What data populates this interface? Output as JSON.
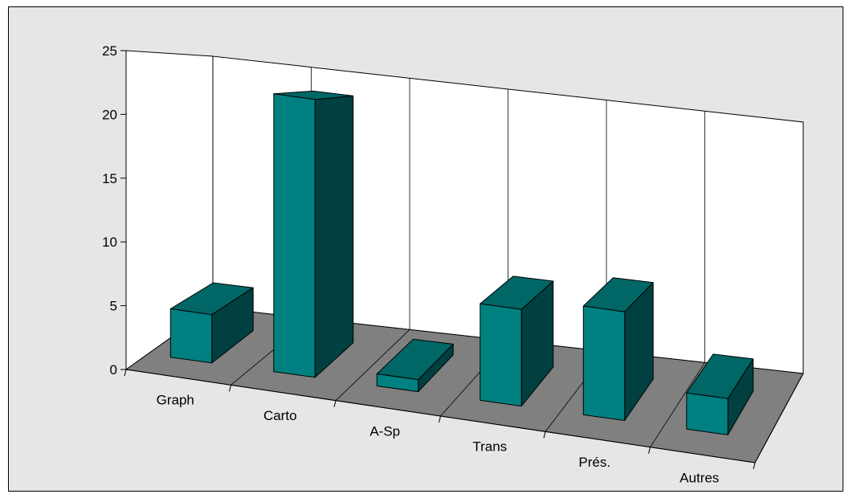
{
  "chart_data": {
    "type": "bar",
    "projection": "3d-perspective",
    "categories": [
      "Graph",
      "Carto",
      "A-Sp",
      "Trans",
      "Prés.",
      "Autres"
    ],
    "values": [
      4,
      23,
      1,
      8,
      9,
      3
    ],
    "y_ticks": [
      "0",
      "5",
      "10",
      "15",
      "20",
      "25"
    ],
    "ylim": [
      0,
      25
    ],
    "grid": true,
    "legend": false
  },
  "colors": {
    "front": "#008080",
    "top": "#006666",
    "side": "#004040",
    "floor": "#808080",
    "wall": "#ffffff",
    "background": "#e6e6e6"
  }
}
